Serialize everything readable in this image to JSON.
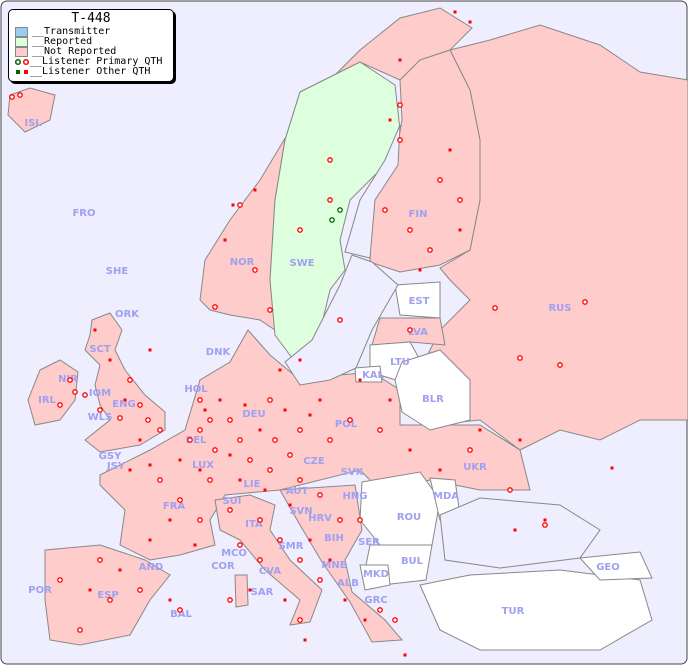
{
  "title": "T-448",
  "legend": [
    {
      "label": "__Transmitter",
      "color": "#99ccee"
    },
    {
      "label": "__Reported",
      "color": "#ddffdd"
    },
    {
      "label": "__Not Reported",
      "color": "#ffcccc"
    },
    {
      "label": "__Listener Primary QTH",
      "marker": "circle"
    },
    {
      "label": "__Listener Other QTH",
      "marker": "square"
    }
  ],
  "colors": {
    "sea": "#eeeeff",
    "not_reported": "#ffcccc",
    "reported": "#ddffdd",
    "none": "#ffffff",
    "marker": "#ff0000",
    "label": "#a0a0f0"
  },
  "countries": [
    "ISL",
    "FRO",
    "SHE",
    "ORK",
    "NOR",
    "SWE",
    "FIN",
    "EST",
    "RUS",
    "LVA",
    "LTU",
    "DNK",
    "KAL",
    "BLR",
    "HOL",
    "DEU",
    "POL",
    "SCT",
    "NIR",
    "IRL",
    "IOM",
    "WLS",
    "ENG",
    "GSY",
    "JSY",
    "BEL",
    "LUX",
    "CZE",
    "SVK",
    "UKR",
    "FRA",
    "SUI",
    "LIE",
    "AUT",
    "HNG",
    "MDA",
    "SVN",
    "HRV",
    "ROU",
    "ITA",
    "BIH",
    "SER",
    "MCO",
    "COR",
    "SMR",
    "CVA",
    "MNE",
    "BUL",
    "GEO",
    "AND",
    "POR",
    "ESP",
    "BAL",
    "SAR",
    "ALB",
    "MKD",
    "GRC",
    "TUR"
  ]
}
